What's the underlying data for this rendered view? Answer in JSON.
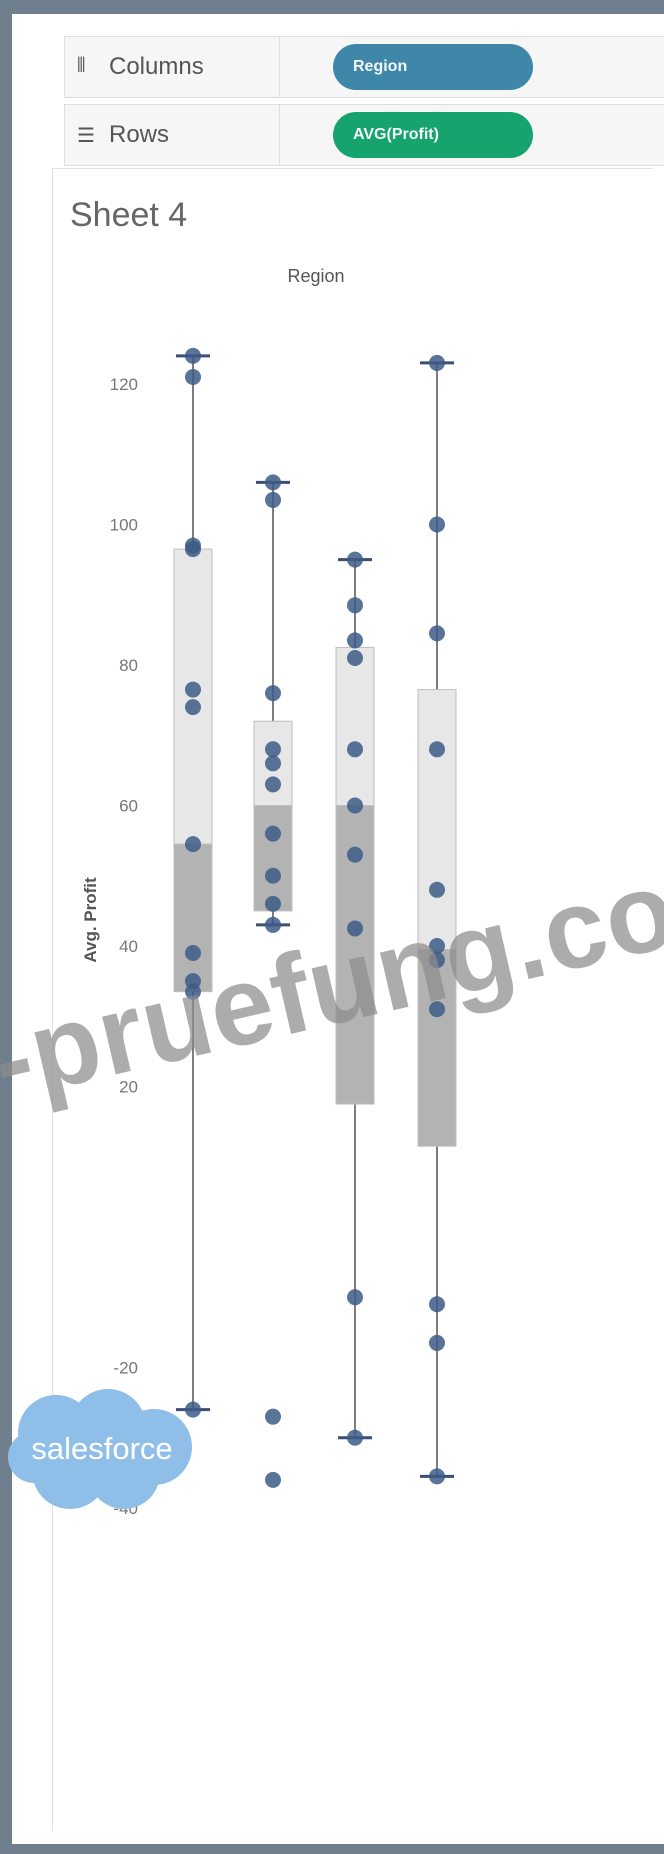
{
  "shelves": {
    "columns": {
      "label": "Columns",
      "pill": "Region",
      "pill_color": "#3e87a9",
      "icon": "columns-icon"
    },
    "rows": {
      "label": "Rows",
      "pill": "AVG(Profit)",
      "pill_color": "#16a36d",
      "icon": "rows-icon"
    }
  },
  "sheet": {
    "title": "Sheet 4"
  },
  "watermark": "-pruefung.co",
  "logo": {
    "text": "salesforce",
    "color": "#8fbfe8"
  },
  "chart_data": {
    "type": "box",
    "title": "Region",
    "xlabel": "",
    "ylabel": "Avg. Profit",
    "ylim": [
      -42,
      130
    ],
    "yticks": [
      120,
      100,
      80,
      60,
      40,
      20,
      0,
      -20,
      -40
    ],
    "ytick_labels": [
      "120",
      "100",
      "80",
      "60",
      "40",
      "20",
      "",
      "-20",
      "-40"
    ],
    "series": [
      {
        "min": -26,
        "q1": 33.5,
        "median": 54.5,
        "q3": 96.5,
        "max": 124,
        "points": [
          124,
          121,
          97,
          96.5,
          76.5,
          74,
          54.5,
          39,
          35,
          33.5,
          -26
        ]
      },
      {
        "min": 43,
        "q1": 45,
        "median": 60,
        "q3": 72,
        "max": 106,
        "points": [
          106,
          103.5,
          76,
          68,
          66,
          63,
          56,
          50,
          46,
          43,
          -27,
          -36
        ]
      },
      {
        "min": -30,
        "q1": 17.5,
        "median": 60,
        "q3": 82.5,
        "max": 95,
        "points": [
          95,
          88.5,
          83.5,
          81,
          68,
          60,
          53,
          42.5,
          -10,
          -30
        ]
      },
      {
        "min": -35.5,
        "q1": 11.5,
        "median": 39.5,
        "q3": 76.5,
        "max": 123,
        "points": [
          123,
          100,
          84.5,
          68,
          48,
          40,
          38,
          31,
          -11,
          -16.5,
          -35.5
        ]
      }
    ]
  }
}
